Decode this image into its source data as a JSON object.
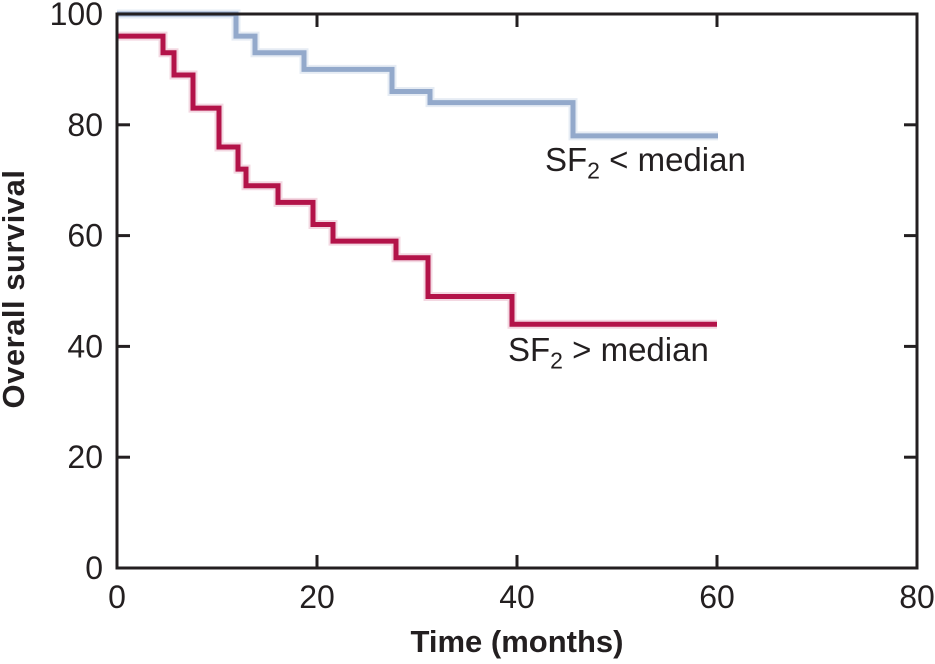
{
  "chart_data": {
    "type": "line",
    "subtype": "kaplan_meier_step",
    "title": "",
    "xlabel": "Time (months)",
    "ylabel": "Overall survival",
    "xlim": [
      0,
      80
    ],
    "ylim": [
      0,
      100
    ],
    "x_tick_labels": [
      0,
      20,
      40,
      60,
      80
    ],
    "x_tick_marks": [
      20,
      40,
      60
    ],
    "y_tick_labels": [
      0,
      20,
      40,
      60,
      80,
      100
    ],
    "y_tick_marks": [
      20,
      40,
      60,
      80
    ],
    "grid": false,
    "legend_position": "inline-annotations",
    "axis_color": "#231f20",
    "text_color": "#231f20",
    "series": [
      {
        "name": "SF2 < median",
        "label": {
          "prefix": "SF",
          "sub": "2",
          "suffix": " < median"
        },
        "color": "#93a9cb",
        "halo_color": "#e6ecf4",
        "steps": [
          [
            0,
            100
          ],
          [
            11.9,
            96
          ],
          [
            13.8,
            93
          ],
          [
            18.7,
            90
          ],
          [
            27.5,
            86
          ],
          [
            31.3,
            84
          ],
          [
            45.6,
            78
          ],
          [
            60.1,
            78
          ]
        ]
      },
      {
        "name": "SF2 > median",
        "label": {
          "prefix": "SF",
          "sub": "2",
          "suffix": " > median"
        },
        "color": "#b31349",
        "halo_color": "#f3d8e2",
        "steps": [
          [
            0,
            96
          ],
          [
            4.6,
            93
          ],
          [
            5.7,
            89
          ],
          [
            7.6,
            83
          ],
          [
            10.2,
            76
          ],
          [
            12.1,
            72
          ],
          [
            12.9,
            69
          ],
          [
            16.1,
            66
          ],
          [
            19.6,
            62
          ],
          [
            21.6,
            59
          ],
          [
            27.9,
            56
          ],
          [
            31.1,
            49
          ],
          [
            39.5,
            44
          ],
          [
            60,
            44
          ]
        ]
      }
    ]
  }
}
